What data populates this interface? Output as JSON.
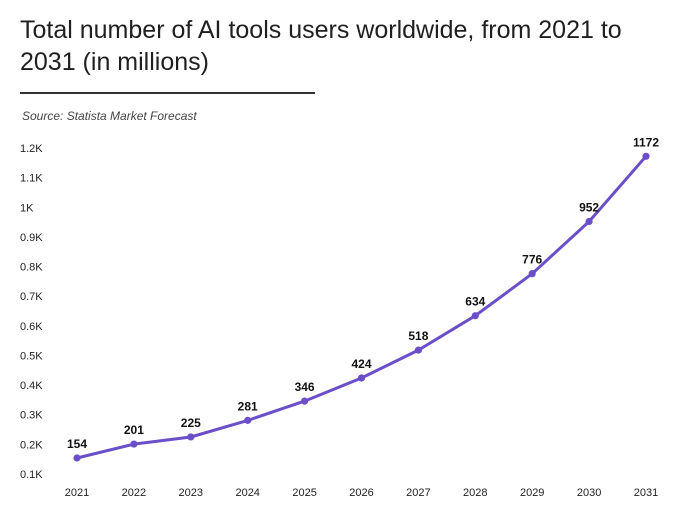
{
  "header": {
    "title": "Total number of AI tools users worldwide, from 2021 to 2031 (in millions)",
    "source": "Source: Statista Market Forecast"
  },
  "colors": {
    "line": "#6a4fc8",
    "point": "#6a4fc8"
  },
  "chart_data": {
    "type": "line",
    "title": "Total number of AI tools users worldwide, from 2021 to 2031 (in millions)",
    "xlabel": "",
    "ylabel": "",
    "categories": [
      "2021",
      "2022",
      "2023",
      "2024",
      "2025",
      "2026",
      "2027",
      "2028",
      "2029",
      "2030",
      "2031"
    ],
    "values": [
      154,
      201,
      225,
      281,
      346,
      424,
      518,
      634,
      776,
      952,
      1172
    ],
    "data_labels": [
      "154",
      "201",
      "225",
      "281",
      "346",
      "424",
      "518",
      "634",
      "776",
      "952",
      "1172"
    ],
    "ylim": [
      100,
      1200
    ],
    "yticks": [
      100,
      200,
      300,
      400,
      500,
      600,
      700,
      800,
      900,
      1000,
      1100,
      1200
    ],
    "ytick_labels": [
      "0.1K",
      "0.2K",
      "0.3K",
      "0.4K",
      "0.5K",
      "0.6K",
      "0.7K",
      "0.8K",
      "0.9K",
      "1K",
      "1.1K",
      "1.2K"
    ],
    "grid": false,
    "legend": "none"
  }
}
